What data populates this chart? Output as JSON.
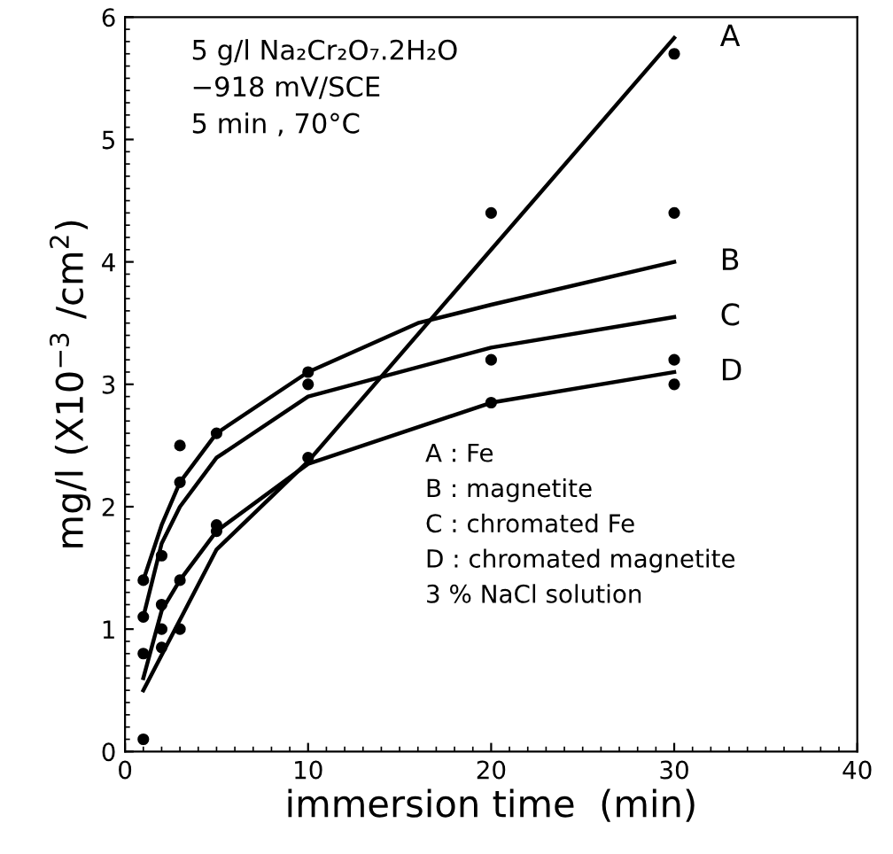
{
  "chart_data": {
    "type": "line",
    "xlabel": "immersion time  (min)",
    "ylabel": "mg/l (X10$^{−3}$ /cm$^{2}$)",
    "xlim": [
      0,
      40
    ],
    "xticks": [
      0,
      10,
      20,
      30,
      40
    ],
    "ylim": [
      0,
      6
    ],
    "yticks": [
      0,
      1,
      2,
      3,
      4,
      5,
      6
    ],
    "grid": false,
    "legend": false,
    "marker": "none",
    "line_style": "solid",
    "annotations": [
      "5 g/l Na₂Cr₂O₇.2H₂O",
      "−918 mV/SCE",
      "5 min , 70°C",
      "A : Fe",
      "B : magnetite",
      "C : chromated Fe",
      "D : chromated magnetite",
      "3 % NaCl solution"
    ],
    "series": [
      {
        "name": "A",
        "color": "#000000",
        "x": [
          1,
          5,
          10,
          20,
          30
        ],
        "values": [
          0.5,
          1.65,
          2.37,
          4.1,
          5.83
        ]
      },
      {
        "name": "B",
        "color": "#000000",
        "x": [
          1,
          2,
          3,
          5,
          10,
          16,
          20,
          30
        ],
        "values": [
          1.4,
          1.85,
          2.2,
          2.6,
          3.1,
          3.5,
          3.65,
          4.0
        ]
      },
      {
        "name": "C",
        "color": "#000000",
        "x": [
          1,
          2,
          3,
          5,
          10,
          20,
          30
        ],
        "values": [
          1.1,
          1.7,
          2.0,
          2.4,
          2.9,
          3.3,
          3.55
        ]
      },
      {
        "name": "D",
        "color": "#000000",
        "x": [
          1,
          2,
          3,
          5,
          10,
          20,
          30
        ],
        "values": [
          0.6,
          1.15,
          1.4,
          1.8,
          2.35,
          2.85,
          3.1
        ]
      },
      {
        "type": "scatter",
        "color": "#000000",
        "marker": "circle",
        "x": [
          1,
          2,
          3,
          5,
          10,
          20,
          30
        ],
        "values": [
          0.1,
          0.85,
          1.0,
          1.85,
          2.4,
          4.4,
          5.7
        ]
      },
      {
        "type": "scatter",
        "color": "#000000",
        "marker": "circle",
        "x": [
          1,
          2,
          3,
          5,
          10,
          30
        ],
        "values": [
          1.4,
          1.6,
          2.5,
          2.6,
          3.1,
          4.4
        ]
      },
      {
        "type": "scatter",
        "color": "#000000",
        "marker": "circle",
        "x": [
          1,
          2,
          3,
          10,
          20
        ],
        "values": [
          1.1,
          1.2,
          2.2,
          3.0,
          3.2
        ]
      },
      {
        "type": "scatter",
        "color": "#000000",
        "marker": "circle",
        "x": [
          1,
          2,
          3,
          5,
          20,
          30,
          30
        ],
        "values": [
          0.8,
          1.0,
          1.4,
          1.8,
          2.85,
          3.2,
          3.0
        ]
      }
    ]
  }
}
